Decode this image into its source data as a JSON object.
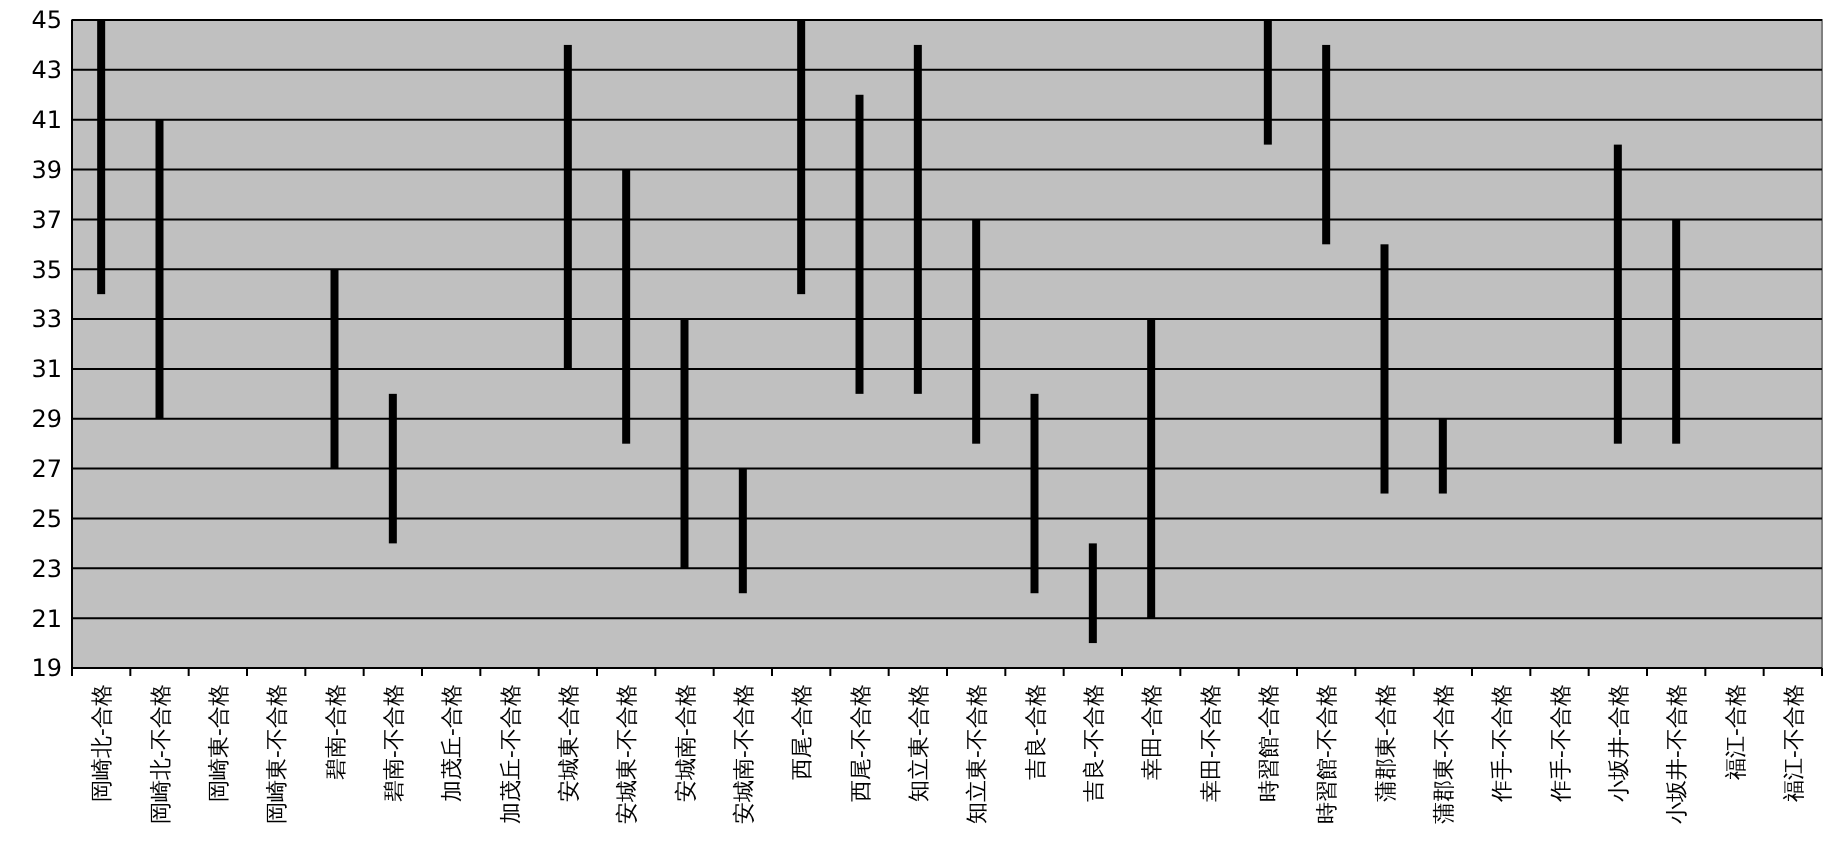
{
  "chart_data": {
    "type": "bar",
    "categories": [
      "岡崎北-合格",
      "岡崎北-不合格",
      "岡崎東-合格",
      "岡崎東-不合格",
      "碧南-合格",
      "碧南-不合格",
      "加茂丘-合格",
      "加茂丘-不合格",
      "安城東-合格",
      "安城東-不合格",
      "安城南-合格",
      "安城南-不合格",
      "西尾-合格",
      "西尾-不合格",
      "知立東-合格",
      "知立東-不合格",
      "吉良-合格",
      "吉良-不合格",
      "幸田-合格",
      "幸田-不合格",
      "時習館-合格",
      "時習館-不合格",
      "蒲郡東-合格",
      "蒲郡東-不合格",
      "作手-不合格",
      "作手-不合格",
      "小坂井-合格",
      "小坂井-不合格",
      "福江-合格",
      "福江-不合格"
    ],
    "base": [
      34,
      29,
      null,
      null,
      27,
      24,
      null,
      null,
      31,
      28,
      23,
      22,
      34,
      30,
      30,
      28,
      22,
      20,
      21,
      null,
      40,
      36,
      26,
      26,
      null,
      null,
      28,
      28,
      null,
      null
    ],
    "values": [
      11,
      12,
      null,
      null,
      8,
      6,
      null,
      null,
      13,
      11,
      10,
      5,
      11,
      12,
      14,
      9,
      8,
      4,
      12,
      null,
      5,
      8,
      10,
      3,
      null,
      null,
      12,
      9,
      null,
      null
    ],
    "color": "#000000",
    "ylim": [
      19,
      45
    ],
    "yticks": [
      19,
      21,
      23,
      25,
      27,
      29,
      31,
      33,
      35,
      37,
      39,
      41,
      43,
      45
    ],
    "grid": "y"
  }
}
